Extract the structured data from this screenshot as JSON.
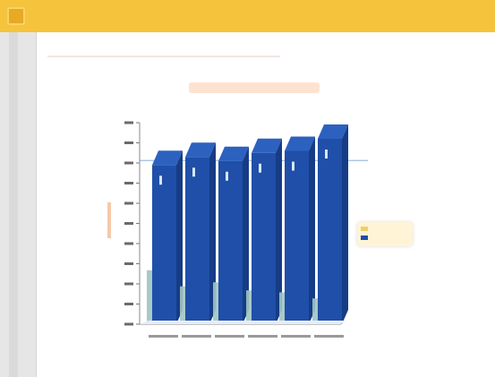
{
  "app": {
    "title": ""
  },
  "page": {
    "subtitle": ""
  },
  "chart_data": {
    "type": "bar",
    "title": "",
    "xlabel": "",
    "ylabel": "",
    "categories": [
      "",
      "",
      "",
      "",
      "",
      ""
    ],
    "ylim": [
      0,
      100
    ],
    "ytick_step": 10,
    "series": [
      {
        "values": [
          79,
          83,
          81,
          85,
          86,
          92
        ],
        "color": "#1f4fa8"
      },
      {
        "values": [
          25,
          17,
          19,
          15,
          14,
          11
        ],
        "color": "#9fc4c2"
      }
    ],
    "grid": false,
    "legend": {
      "position": "right",
      "entries": [
        "",
        ""
      ]
    },
    "threshold": {
      "value": 79,
      "color": "#9dbbe0"
    }
  }
}
